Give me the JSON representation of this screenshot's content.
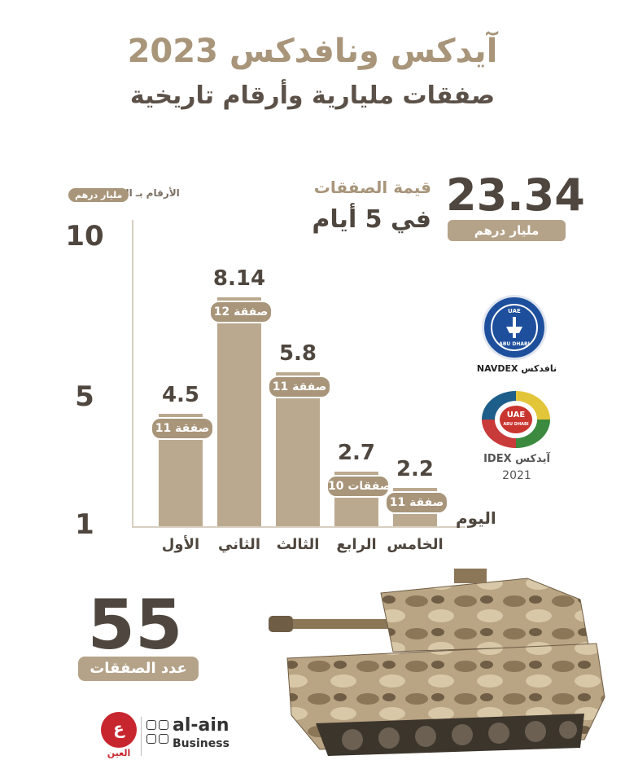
{
  "header": {
    "title": "آيدكس ونافدكس 2023",
    "subtitle": "صفقات مليارية وأرقام تاريخية"
  },
  "total_value": {
    "number": "23.34",
    "unit": "مليار درهم",
    "label_line1": "قيمة الصفقات",
    "label_line2": "في 5 أيام"
  },
  "units_note": {
    "prefix": "الأرقام بـ الـ",
    "unit": "مليار درهم"
  },
  "deals_count": {
    "number": "55",
    "label": "عدد الصفقات"
  },
  "logos": {
    "navdex_badge_top": "UAE",
    "navdex_badge_bottom": "ABU DHABI",
    "navdex_caption": "NAVDEX نافدكس",
    "idex_badge_top": "UAE",
    "idex_badge_bottom": "ABU DHABI",
    "idex_caption": "IDEX آيدكس",
    "idex_year": "2021"
  },
  "footer": {
    "brand_ar": "العين",
    "brand_line1": "al-ain",
    "brand_line2": "Business"
  },
  "colors": {
    "accent": "#a8957a",
    "bar": "#bba98f",
    "dark_text": "#4f473f"
  },
  "chart_data": {
    "type": "bar",
    "xlabel": "اليوم",
    "categories": [
      "الأول",
      "الثاني",
      "الثالث",
      "الرابع",
      "الخامس"
    ],
    "values": [
      4.5,
      8.14,
      5.8,
      2.7,
      2.2
    ],
    "value_labels": [
      "4.5",
      "8.14",
      "5.8",
      "2.7",
      "2.2"
    ],
    "deal_labels": [
      "11 صفقة",
      "12 صفقة",
      "11 صفقة",
      "10 صفقات",
      "11 صفقة"
    ],
    "yticks": [
      "10",
      "5",
      "1"
    ],
    "ytick_values": [
      10,
      5,
      1
    ],
    "ylim": [
      1,
      10
    ],
    "grid": false
  }
}
